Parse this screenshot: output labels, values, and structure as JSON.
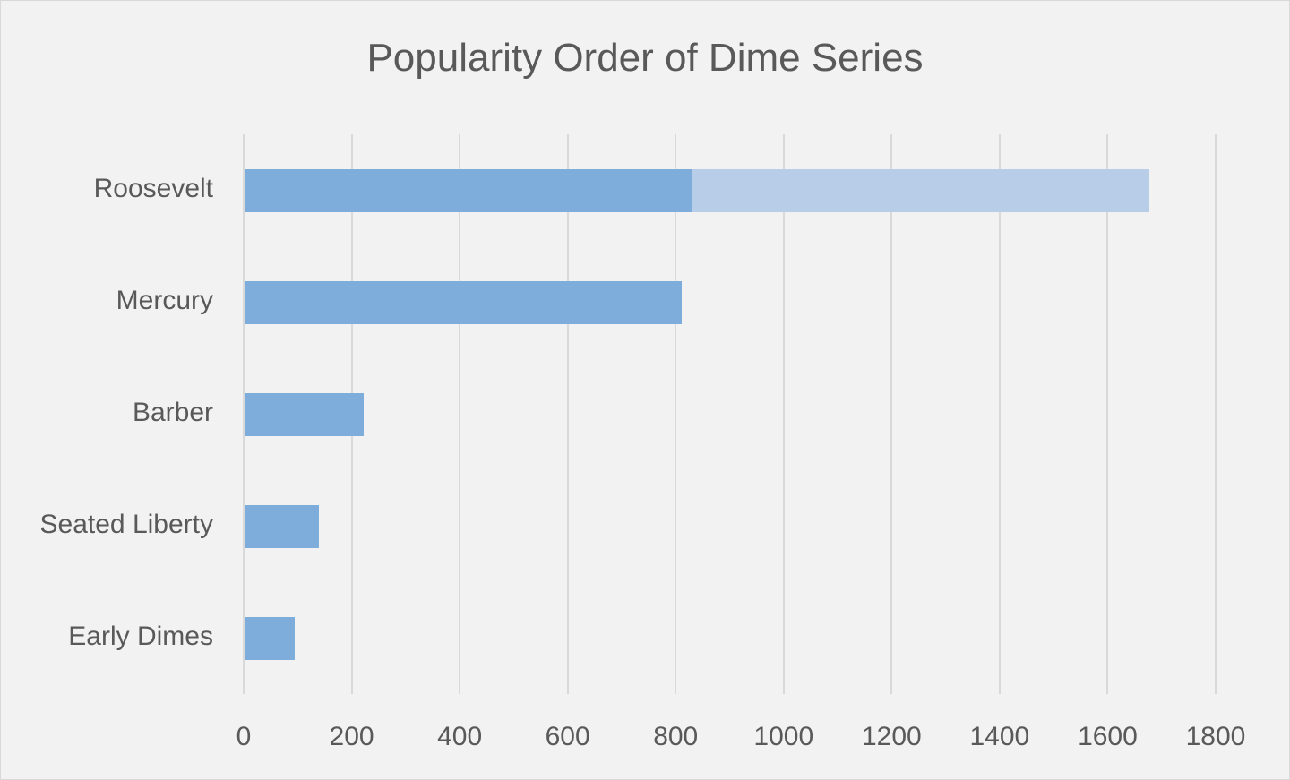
{
  "chart_data": {
    "type": "bar",
    "orientation": "horizontal",
    "stacked": true,
    "title": "Popularity Order of Dime Series",
    "xlabel": "",
    "ylabel": "",
    "categories": [
      "Roosevelt",
      "Mercury",
      "Barber",
      "Seated Liberty",
      "Early Dimes"
    ],
    "series": [
      {
        "name": "Series 1",
        "color": "#7faddb",
        "values": [
          830,
          810,
          220,
          138,
          93
        ]
      },
      {
        "name": "Series 2",
        "color": "#b8cde8",
        "values": [
          845,
          0,
          0,
          0,
          0
        ]
      }
    ],
    "xlim": [
      0,
      1800
    ],
    "xticks": [
      "0",
      "200",
      "400",
      "600",
      "800",
      "1000",
      "1200",
      "1400",
      "1600",
      "1800"
    ],
    "grid": "vertical",
    "legend": "none"
  }
}
